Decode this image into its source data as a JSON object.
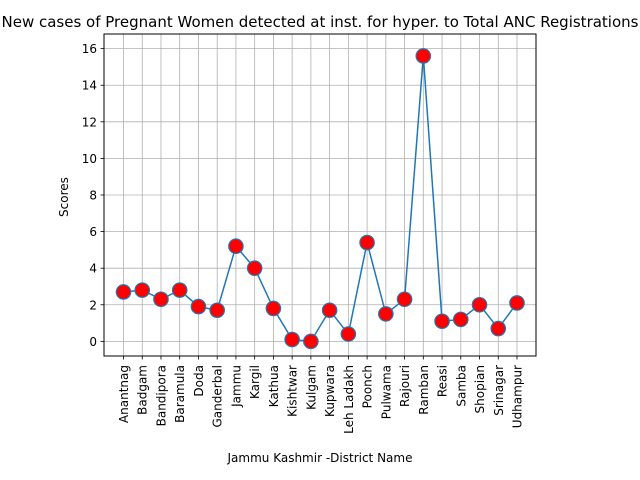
{
  "chart_data": {
    "type": "line",
    "title": "New cases of Pregnant Women detected at inst. for hyper. to Total ANC Registrations",
    "xlabel": "Jammu Kashmir -District Name",
    "ylabel": "Scores",
    "categories": [
      "Anantnag",
      "Badgam",
      "Bandipora",
      "Baramula",
      "Doda",
      "Ganderbal",
      "Jammu",
      "Kargil",
      "Kathua",
      "Kishtwar",
      "Kulgam",
      "Kupwara",
      "Leh Ladakh",
      "Poonch",
      "Pulwama",
      "Rajouri",
      "Ramban",
      "Reasi",
      "Samba",
      "Shopian",
      "Srinagar",
      "Udhampur"
    ],
    "values": [
      2.7,
      2.8,
      2.3,
      2.8,
      1.9,
      1.7,
      5.2,
      4.0,
      1.8,
      0.1,
      0.0,
      1.7,
      0.4,
      5.4,
      1.5,
      2.3,
      15.6,
      1.1,
      1.2,
      2.0,
      0.7,
      2.1
    ],
    "ylim": [
      -0.8,
      16.8
    ],
    "yticks": [
      0,
      2,
      4,
      6,
      8,
      10,
      12,
      14,
      16
    ],
    "grid": true,
    "line_color": "#1f77b4",
    "marker_color": "#ff0000",
    "marker_edge_color": "#1f77b4"
  }
}
